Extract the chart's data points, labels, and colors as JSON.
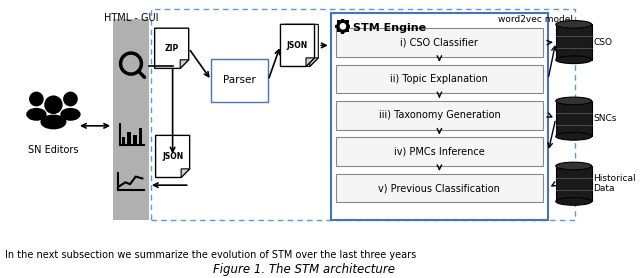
{
  "title": "Figure 1. The STM architecture",
  "subtitle_text": "In the next subsection we summarize the evolution of STM over the last three years",
  "html_gui_label": "HTML - GUI",
  "word2vec_label": "word2vec model",
  "sn_editors_label": "SN Editors",
  "parser_label": "Parser",
  "stm_engine_label": "STM Engine",
  "stm_steps": [
    "i) CSO Classifier",
    "ii) Topic Explanation",
    "iii) Taxonomy Generation",
    "iv) PMCs Inference",
    "v) Previous Classification"
  ],
  "db_labels": [
    "CSO",
    "SNCs",
    "Historical\nData"
  ],
  "bg_color": "#ffffff",
  "gray_bar_color": "#b0b0b0",
  "dashed_outer_color": "#5b9bd5",
  "stm_box_color": "#4472c4",
  "arrow_color": "#000000",
  "text_color": "#000000",
  "figsize": [
    6.4,
    2.78
  ],
  "dpi": 100
}
